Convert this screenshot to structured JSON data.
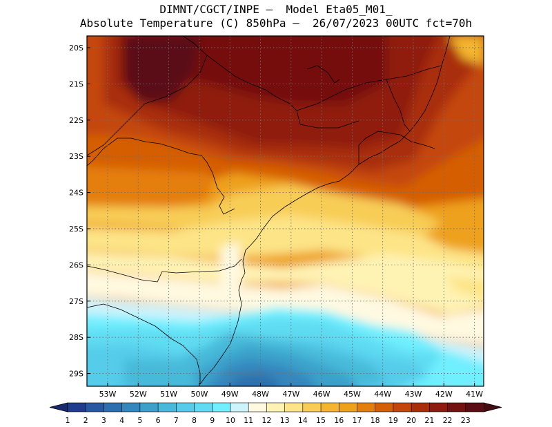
{
  "header": {
    "line1": "DIMNT/CGCT/INPE –  Model Eta05_M01_",
    "line2": "Absolute Temperature (C) 850hPa –  26/07/2023 00UTC fct=70h"
  },
  "map": {
    "variable": "Absolute Temperature",
    "units": "C",
    "level": "850hPa",
    "init": "26/07/2023 00UTC",
    "forecast_hour": "70h",
    "lat_ticks": [
      "20S",
      "21S",
      "22S",
      "23S",
      "24S",
      "25S",
      "26S",
      "27S",
      "28S",
      "29S"
    ],
    "lon_ticks": [
      "53W",
      "52W",
      "51W",
      "50W",
      "49W",
      "48W",
      "47W",
      "46W",
      "45W",
      "44W",
      "43W",
      "42W",
      "41W"
    ]
  },
  "colorbar": {
    "labels": [
      "1",
      "2",
      "3",
      "4",
      "5",
      "6",
      "7",
      "8",
      "9",
      "10",
      "11",
      "12",
      "13",
      "14",
      "15",
      "16",
      "17",
      "18",
      "19",
      "20",
      "21",
      "22",
      "23"
    ],
    "colors": [
      "#203c8c",
      "#2858a0",
      "#2d6fae",
      "#3487bd",
      "#3ba1cb",
      "#47b9d9",
      "#54ccea",
      "#5fdcf2",
      "#6fefff",
      "#cdf3fb",
      "#fff9e1",
      "#fff3b4",
      "#fde487",
      "#f8cd56",
      "#f4b52f",
      "#eea11b",
      "#e47e0d",
      "#d55f04",
      "#c44608",
      "#a92d0b",
      "#8f1a10",
      "#741111",
      "#5a0d12"
    ],
    "arrow_left_color": "#1a2a6e",
    "arrow_right_color": "#450c14"
  }
}
